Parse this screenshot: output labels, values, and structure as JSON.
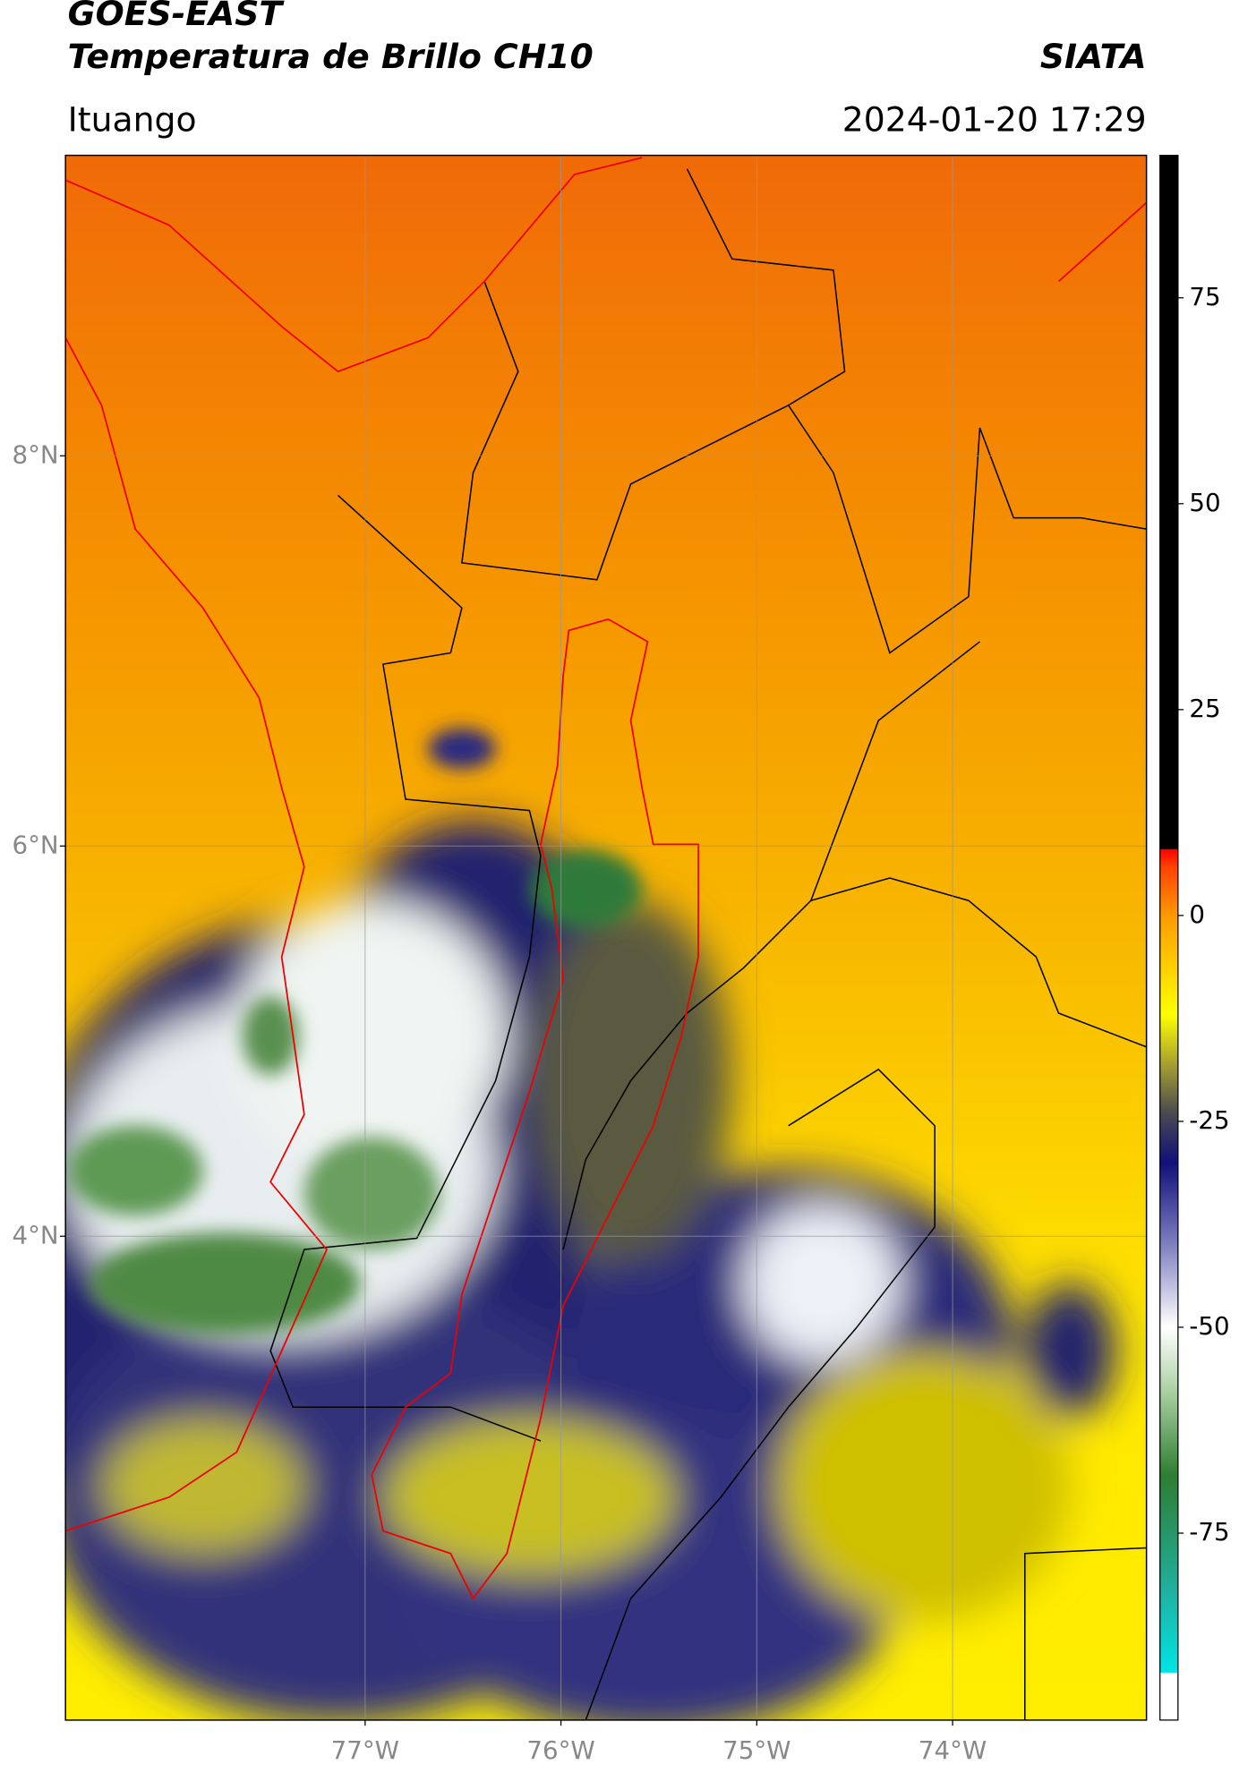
{
  "header": {
    "title": "GOES-EAST",
    "subtitle": "Temperatura de Brillo CH10",
    "source": "SIATA",
    "location": "Ituango",
    "datetime": "2024-01-20 17:29"
  },
  "map": {
    "xlim": [
      -78.53,
      -73.01
    ],
    "ylim": [
      1.52,
      9.54
    ],
    "yticks": [
      {
        "value": 8,
        "label": "8°N"
      },
      {
        "value": 6,
        "label": "6°N"
      },
      {
        "value": 4,
        "label": "4°N"
      }
    ],
    "xticks": [
      {
        "value": -77,
        "label": "77°W"
      },
      {
        "value": -76,
        "label": "76°W"
      },
      {
        "value": -75,
        "label": "75°W"
      },
      {
        "value": -74,
        "label": "74°W"
      }
    ],
    "grid": true
  },
  "colorbar": {
    "lim": [
      -97.7,
      92.3
    ],
    "ticks": [
      75,
      50,
      25,
      0,
      -25,
      -50,
      -75
    ],
    "colormap": [
      {
        "value": -97.7,
        "color": "#ffffff"
      },
      {
        "value": -92,
        "color": "#ffffff"
      },
      {
        "value": -91.9,
        "color": "#00e5e5"
      },
      {
        "value": -82,
        "color": "#20b0a0"
      },
      {
        "value": -68,
        "color": "#2e7d32"
      },
      {
        "value": -58,
        "color": "#a8cfa0"
      },
      {
        "value": -50,
        "color": "#ffffff"
      },
      {
        "value": -40,
        "color": "#7f80c0"
      },
      {
        "value": -30,
        "color": "#10107a"
      },
      {
        "value": -24,
        "color": "#4a4a50"
      },
      {
        "value": -18,
        "color": "#a8a030"
      },
      {
        "value": -12,
        "color": "#ffff00"
      },
      {
        "value": 0,
        "color": "#ff9a00"
      },
      {
        "value": 6,
        "color": "#ff4000"
      },
      {
        "value": 8,
        "color": "#ff0000"
      },
      {
        "value": 8.1,
        "color": "#000000"
      },
      {
        "value": 92.3,
        "color": "#000000"
      }
    ]
  }
}
